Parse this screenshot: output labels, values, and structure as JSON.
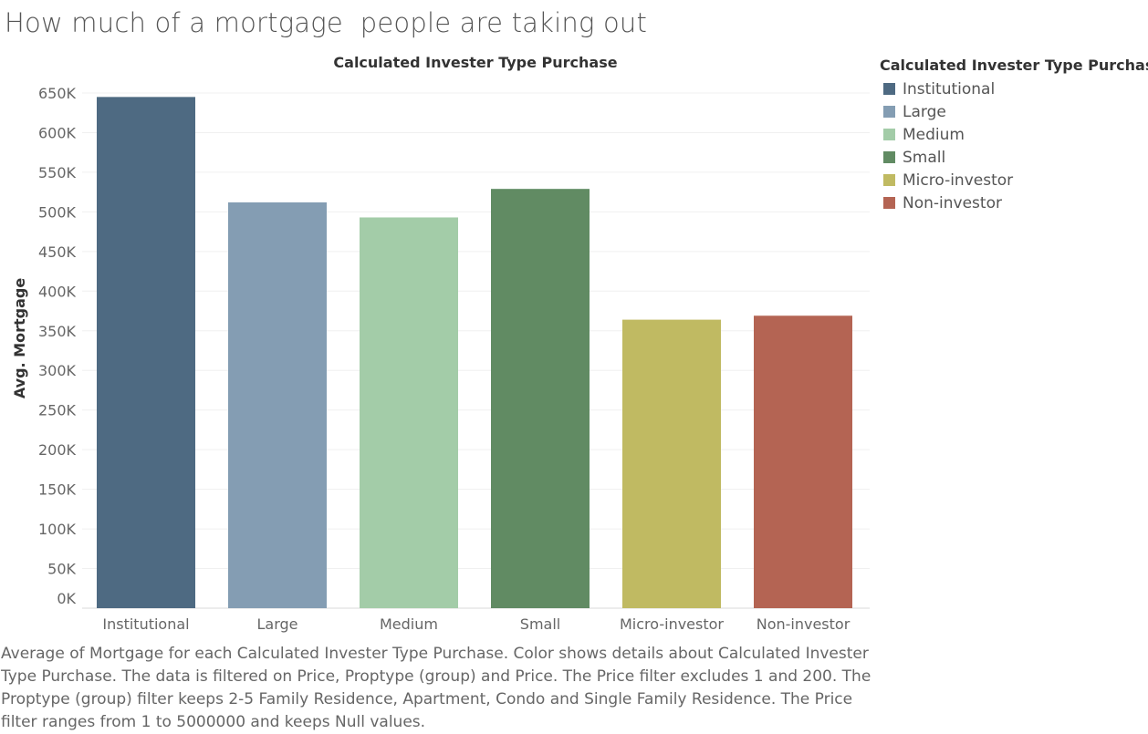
{
  "title": "How much of a mortgage  people are taking out",
  "chart_data": {
    "type": "bar",
    "title": "Calculated Invester Type Purchase",
    "xlabel": "",
    "ylabel": "Avg. Mortgage",
    "categories": [
      "Institutional",
      "Large",
      "Medium",
      "Small",
      "Micro-investor",
      "Non-investor"
    ],
    "values": [
      645000,
      512000,
      493000,
      529000,
      364000,
      369000
    ],
    "colors": [
      "#4e6a82",
      "#849db3",
      "#a3cca8",
      "#618b63",
      "#c0ba62",
      "#b46453"
    ],
    "ylim": [
      0,
      650000
    ],
    "yticks": [
      0,
      50000,
      100000,
      150000,
      200000,
      250000,
      300000,
      350000,
      400000,
      450000,
      500000,
      550000,
      600000,
      650000
    ],
    "ytick_labels": [
      "0K",
      "50K",
      "100K",
      "150K",
      "200K",
      "250K",
      "300K",
      "350K",
      "400K",
      "450K",
      "500K",
      "550K",
      "600K",
      "650K"
    ],
    "grid": true,
    "legend_position": "right"
  },
  "legend": {
    "title": "Calculated Invester Type Purchase",
    "items": [
      "Institutional",
      "Large",
      "Medium",
      "Small",
      "Micro-investor",
      "Non-investor"
    ]
  },
  "caption": "Average of Mortgage for each Calculated Invester Type Purchase.  Color shows details about Calculated Invester Type Purchase. The data is filtered on Price, Proptype (group) and Price. The Price filter excludes 1 and 200. The Proptype (group) filter keeps 2-5 Family Residence, Apartment, Condo and Single Family Residence. The Price filter ranges from 1 to 5000000 and keeps Null values."
}
